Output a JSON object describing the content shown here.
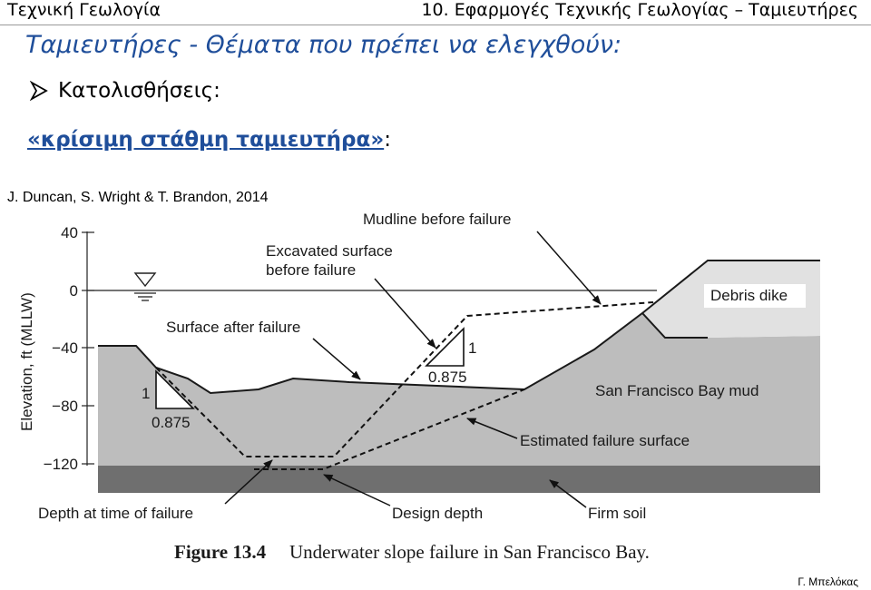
{
  "header": {
    "left": "Τεχνική Γεωλογία",
    "right": "10. Εφαρμογές Τεχνικής Γεωλογίας – Ταμιευτήρες"
  },
  "slide": {
    "title": "Ταμιευτήρες - Θέματα που πρέπει να ελεγχθούν:",
    "bullet": "Κατολισθήσεις:",
    "critical_label": "«κρίσιμη στάθμη ταμιευτήρα»",
    "critical_suffix": ":",
    "source": "J. Duncan, S. Wright & T. Brandon, 2014",
    "footer": "Γ. Μπελόκας"
  },
  "figure": {
    "y_axis_label": "Elevation, ft (MLLW)",
    "y_ticks": [
      "40",
      "0",
      "−40",
      "−80",
      "−120"
    ],
    "labels": {
      "mudline": "Mudline before failure",
      "excavated_1": "Excavated surface",
      "excavated_2": "before failure",
      "surface_after": "Surface after failure",
      "debris": "Debris dike",
      "bay_mud": "San Francisco Bay mud",
      "failure_surface": "Estimated failure surface",
      "depth_failure": "Depth at time of failure",
      "design_depth": "Design depth",
      "firm_soil": "Firm soil"
    },
    "slope_left": {
      "v": "1",
      "h": "0.875"
    },
    "slope_right": {
      "v": "1",
      "h": "0.875"
    },
    "caption_num": "Figure 13.4",
    "caption_text": "Underwater slope failure in San Francisco Bay.",
    "colors": {
      "mud": "#bdbdbd",
      "firm": "#6f6f6f",
      "debris": "#e1e1e1"
    }
  }
}
